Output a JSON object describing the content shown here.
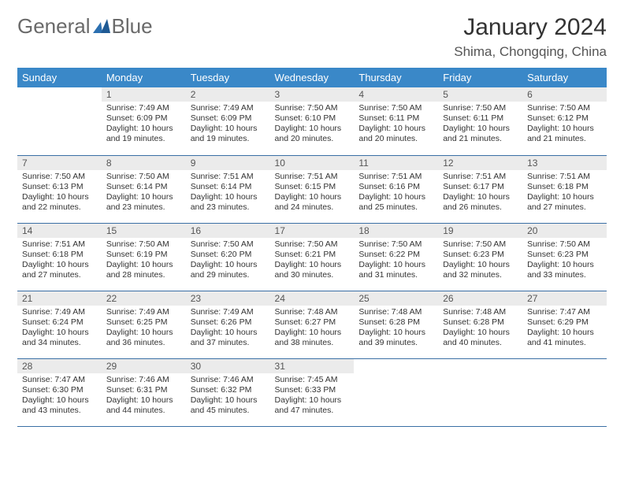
{
  "brand": {
    "text1": "General",
    "text2": "Blue"
  },
  "header": {
    "month": "January 2024",
    "location": "Shima, Chongqing, China"
  },
  "colors": {
    "header_bg": "#3a88c8",
    "header_text": "#ffffff",
    "daynum_bg": "#ebebeb",
    "row_border": "#3a6fa5",
    "logo_text": "#6a6a6a",
    "logo_accent": "#2b6fb0"
  },
  "weekdays": [
    "Sunday",
    "Monday",
    "Tuesday",
    "Wednesday",
    "Thursday",
    "Friday",
    "Saturday"
  ],
  "weeks": [
    [
      {
        "n": "",
        "lines": [
          "",
          "",
          "",
          ""
        ]
      },
      {
        "n": "1",
        "lines": [
          "Sunrise: 7:49 AM",
          "Sunset: 6:09 PM",
          "Daylight: 10 hours",
          "and 19 minutes."
        ]
      },
      {
        "n": "2",
        "lines": [
          "Sunrise: 7:49 AM",
          "Sunset: 6:09 PM",
          "Daylight: 10 hours",
          "and 19 minutes."
        ]
      },
      {
        "n": "3",
        "lines": [
          "Sunrise: 7:50 AM",
          "Sunset: 6:10 PM",
          "Daylight: 10 hours",
          "and 20 minutes."
        ]
      },
      {
        "n": "4",
        "lines": [
          "Sunrise: 7:50 AM",
          "Sunset: 6:11 PM",
          "Daylight: 10 hours",
          "and 20 minutes."
        ]
      },
      {
        "n": "5",
        "lines": [
          "Sunrise: 7:50 AM",
          "Sunset: 6:11 PM",
          "Daylight: 10 hours",
          "and 21 minutes."
        ]
      },
      {
        "n": "6",
        "lines": [
          "Sunrise: 7:50 AM",
          "Sunset: 6:12 PM",
          "Daylight: 10 hours",
          "and 21 minutes."
        ]
      }
    ],
    [
      {
        "n": "7",
        "lines": [
          "Sunrise: 7:50 AM",
          "Sunset: 6:13 PM",
          "Daylight: 10 hours",
          "and 22 minutes."
        ]
      },
      {
        "n": "8",
        "lines": [
          "Sunrise: 7:50 AM",
          "Sunset: 6:14 PM",
          "Daylight: 10 hours",
          "and 23 minutes."
        ]
      },
      {
        "n": "9",
        "lines": [
          "Sunrise: 7:51 AM",
          "Sunset: 6:14 PM",
          "Daylight: 10 hours",
          "and 23 minutes."
        ]
      },
      {
        "n": "10",
        "lines": [
          "Sunrise: 7:51 AM",
          "Sunset: 6:15 PM",
          "Daylight: 10 hours",
          "and 24 minutes."
        ]
      },
      {
        "n": "11",
        "lines": [
          "Sunrise: 7:51 AM",
          "Sunset: 6:16 PM",
          "Daylight: 10 hours",
          "and 25 minutes."
        ]
      },
      {
        "n": "12",
        "lines": [
          "Sunrise: 7:51 AM",
          "Sunset: 6:17 PM",
          "Daylight: 10 hours",
          "and 26 minutes."
        ]
      },
      {
        "n": "13",
        "lines": [
          "Sunrise: 7:51 AM",
          "Sunset: 6:18 PM",
          "Daylight: 10 hours",
          "and 27 minutes."
        ]
      }
    ],
    [
      {
        "n": "14",
        "lines": [
          "Sunrise: 7:51 AM",
          "Sunset: 6:18 PM",
          "Daylight: 10 hours",
          "and 27 minutes."
        ]
      },
      {
        "n": "15",
        "lines": [
          "Sunrise: 7:50 AM",
          "Sunset: 6:19 PM",
          "Daylight: 10 hours",
          "and 28 minutes."
        ]
      },
      {
        "n": "16",
        "lines": [
          "Sunrise: 7:50 AM",
          "Sunset: 6:20 PM",
          "Daylight: 10 hours",
          "and 29 minutes."
        ]
      },
      {
        "n": "17",
        "lines": [
          "Sunrise: 7:50 AM",
          "Sunset: 6:21 PM",
          "Daylight: 10 hours",
          "and 30 minutes."
        ]
      },
      {
        "n": "18",
        "lines": [
          "Sunrise: 7:50 AM",
          "Sunset: 6:22 PM",
          "Daylight: 10 hours",
          "and 31 minutes."
        ]
      },
      {
        "n": "19",
        "lines": [
          "Sunrise: 7:50 AM",
          "Sunset: 6:23 PM",
          "Daylight: 10 hours",
          "and 32 minutes."
        ]
      },
      {
        "n": "20",
        "lines": [
          "Sunrise: 7:50 AM",
          "Sunset: 6:23 PM",
          "Daylight: 10 hours",
          "and 33 minutes."
        ]
      }
    ],
    [
      {
        "n": "21",
        "lines": [
          "Sunrise: 7:49 AM",
          "Sunset: 6:24 PM",
          "Daylight: 10 hours",
          "and 34 minutes."
        ]
      },
      {
        "n": "22",
        "lines": [
          "Sunrise: 7:49 AM",
          "Sunset: 6:25 PM",
          "Daylight: 10 hours",
          "and 36 minutes."
        ]
      },
      {
        "n": "23",
        "lines": [
          "Sunrise: 7:49 AM",
          "Sunset: 6:26 PM",
          "Daylight: 10 hours",
          "and 37 minutes."
        ]
      },
      {
        "n": "24",
        "lines": [
          "Sunrise: 7:48 AM",
          "Sunset: 6:27 PM",
          "Daylight: 10 hours",
          "and 38 minutes."
        ]
      },
      {
        "n": "25",
        "lines": [
          "Sunrise: 7:48 AM",
          "Sunset: 6:28 PM",
          "Daylight: 10 hours",
          "and 39 minutes."
        ]
      },
      {
        "n": "26",
        "lines": [
          "Sunrise: 7:48 AM",
          "Sunset: 6:28 PM",
          "Daylight: 10 hours",
          "and 40 minutes."
        ]
      },
      {
        "n": "27",
        "lines": [
          "Sunrise: 7:47 AM",
          "Sunset: 6:29 PM",
          "Daylight: 10 hours",
          "and 41 minutes."
        ]
      }
    ],
    [
      {
        "n": "28",
        "lines": [
          "Sunrise: 7:47 AM",
          "Sunset: 6:30 PM",
          "Daylight: 10 hours",
          "and 43 minutes."
        ]
      },
      {
        "n": "29",
        "lines": [
          "Sunrise: 7:46 AM",
          "Sunset: 6:31 PM",
          "Daylight: 10 hours",
          "and 44 minutes."
        ]
      },
      {
        "n": "30",
        "lines": [
          "Sunrise: 7:46 AM",
          "Sunset: 6:32 PM",
          "Daylight: 10 hours",
          "and 45 minutes."
        ]
      },
      {
        "n": "31",
        "lines": [
          "Sunrise: 7:45 AM",
          "Sunset: 6:33 PM",
          "Daylight: 10 hours",
          "and 47 minutes."
        ]
      },
      {
        "n": "",
        "lines": [
          "",
          "",
          "",
          ""
        ]
      },
      {
        "n": "",
        "lines": [
          "",
          "",
          "",
          ""
        ]
      },
      {
        "n": "",
        "lines": [
          "",
          "",
          "",
          ""
        ]
      }
    ]
  ]
}
